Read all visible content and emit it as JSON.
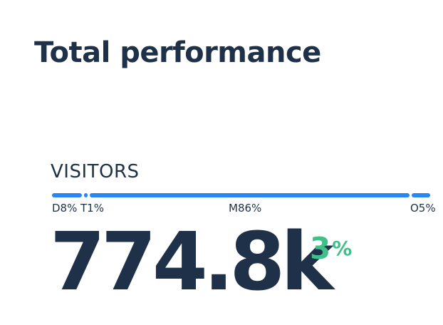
{
  "header": {
    "title": "Total performance"
  },
  "metric": {
    "label": "VISITORS",
    "value": "774.8k",
    "change_value": "3",
    "change_unit": "%",
    "change_color": "#3fc08a",
    "breakdown": [
      {
        "label": "D8%",
        "share_percent": 8
      },
      {
        "label": "T1%",
        "share_percent": 1
      },
      {
        "label": "M86%",
        "share_percent": 86
      },
      {
        "label": "O5%",
        "share_percent": 5
      }
    ]
  },
  "colors": {
    "text": "#1e3148",
    "bar": "#2b87f0",
    "positive": "#3fc08a"
  }
}
